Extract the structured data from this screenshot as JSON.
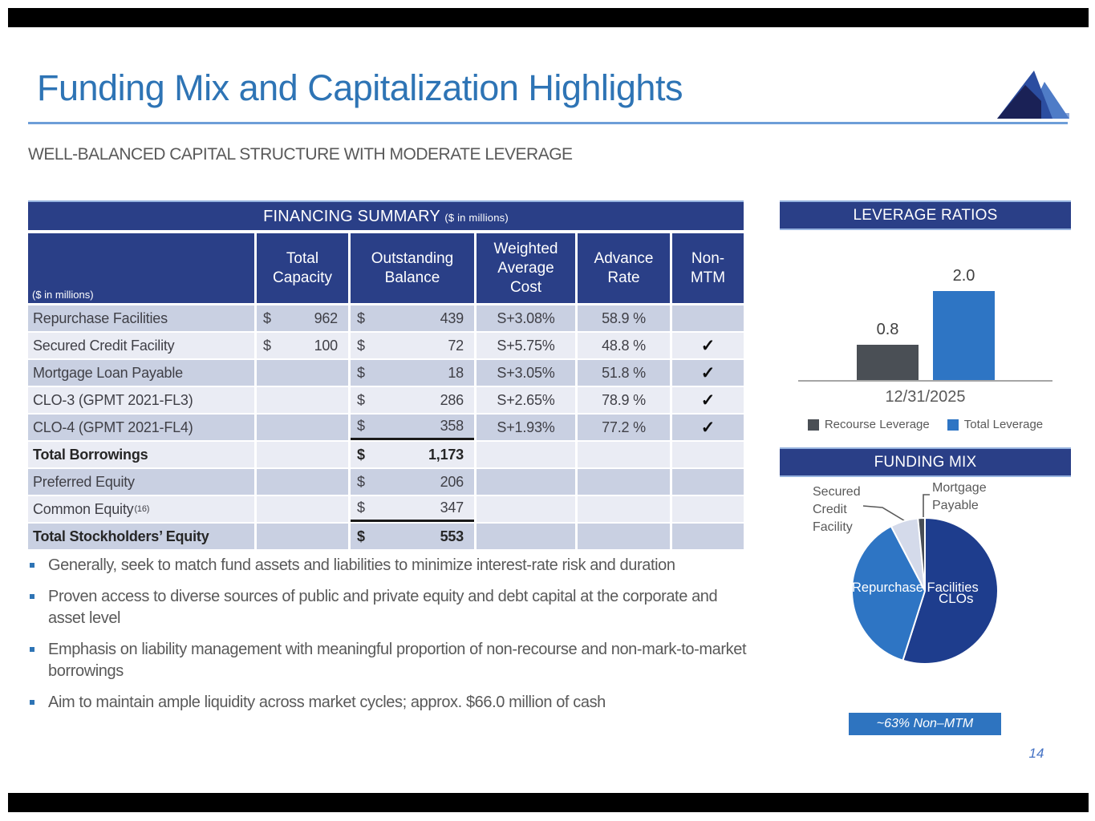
{
  "slide": {
    "title": "Funding Mix and Capitalization Highlights",
    "subtitle": "WELL-BALANCED CAPITAL STRUCTURE WITH MODERATE LEVERAGE",
    "page_number": "14"
  },
  "colors": {
    "title_blue": "#2E74B5",
    "navy_header": "#2A3F87",
    "accent_blue": "#2E75C4",
    "dark_gray_bar": "#4A4F55",
    "row_dark": "#C9D0E2",
    "row_light": "#EAECF4",
    "body_gray": "#595959"
  },
  "financing_table": {
    "title": "FINANCING SUMMARY",
    "unit": "($ in millions)",
    "row_unit": "($ in millions)",
    "dollar": "$",
    "check_glyph": "✓",
    "columns": [
      "",
      "Total Capacity",
      "Outstanding Balance",
      "Weighted Average Cost",
      "Advance Rate",
      "Non-MTM"
    ],
    "rows": [
      {
        "name": "Repurchase Facilities",
        "capacity": "962",
        "balance": "439",
        "cost": "S+3.08%",
        "advance": "58.9 %",
        "non_mtm": false
      },
      {
        "name": "Secured Credit Facility",
        "capacity": "100",
        "balance": "72",
        "cost": "S+5.75%",
        "advance": "48.8 %",
        "non_mtm": true
      },
      {
        "name": "Mortgage Loan Payable",
        "capacity": "",
        "balance": "18",
        "cost": "S+3.05%",
        "advance": "51.8 %",
        "non_mtm": true
      },
      {
        "name": "CLO-3 (GPMT 2021-FL3)",
        "capacity": "",
        "balance": "286",
        "cost": "S+2.65%",
        "advance": "78.9 %",
        "non_mtm": true
      },
      {
        "name": "CLO-4 (GPMT 2021-FL4)",
        "capacity": "",
        "balance": "358",
        "cost": "S+1.93%",
        "advance": "77.2 %",
        "non_mtm": true,
        "sum_line": true
      },
      {
        "name": "Total Borrowings",
        "capacity": "",
        "balance": "1,173",
        "cost": "",
        "advance": "",
        "non_mtm": false,
        "bold": true
      },
      {
        "name": "Preferred Equity",
        "capacity": "",
        "balance": "206",
        "cost": "",
        "advance": "",
        "non_mtm": false
      },
      {
        "name": "Common Equity",
        "name_sup": "(16)",
        "capacity": "",
        "balance": "347",
        "cost": "",
        "advance": "",
        "non_mtm": false,
        "sum_line": true
      },
      {
        "name": "Total Stockholders’ Equity",
        "capacity": "",
        "balance": "553",
        "cost": "",
        "advance": "",
        "non_mtm": false,
        "bold": true
      }
    ]
  },
  "leverage": {
    "title": "LEVERAGE RATIOS",
    "date_label": "12/31/2025",
    "bars": [
      {
        "name": "Recourse Leverage",
        "value": 0.8,
        "color": "#4A4F55"
      },
      {
        "name": "Total Leverage",
        "value": 2.0,
        "color": "#2E75C4"
      }
    ]
  },
  "funding_mix": {
    "title": "FUNDING MIX",
    "slices": [
      {
        "id": "clos",
        "label": "CLOs",
        "value": 644,
        "color": "#1E3D8D"
      },
      {
        "id": "repurchase-facilities",
        "label": "Repurchase Facilities",
        "value": 439,
        "color": "#2E75C4"
      },
      {
        "id": "secured-credit-facility",
        "label": "Secured Credit Facility",
        "value": 72,
        "color": "#D4DAEA"
      },
      {
        "id": "mortgage-payable",
        "label": "Mortgage Payable",
        "value": 18,
        "color": "#474D55"
      }
    ],
    "callout_secured": "Secured\nCredit\nFacility",
    "callout_mortgage": "Mortgage\nPayable",
    "label_repurchase": "Repurchase\nFacilities",
    "label_clos": "CLOs",
    "badge": "~63% Non–MTM"
  },
  "bullets": [
    "Generally, seek to match fund assets and liabilities to minimize interest-rate risk and duration",
    "Proven access to diverse sources of public and private equity and debt capital at the corporate and asset level",
    "Emphasis on liability management with meaningful proportion of non-recourse and non-mark-to-market borrowings",
    "Aim to maintain ample liquidity across market cycles; approx. $66.0 million of cash"
  ],
  "chart_data": [
    {
      "type": "bar",
      "title": "LEVERAGE RATIOS",
      "categories": [
        "12/31/2025"
      ],
      "series": [
        {
          "name": "Recourse Leverage",
          "values": [
            0.8
          ]
        },
        {
          "name": "Total Leverage",
          "values": [
            2.0
          ]
        }
      ],
      "ylim": [
        0,
        2.2
      ],
      "grid": false,
      "legend_position": "bottom",
      "data_labels": true
    },
    {
      "type": "pie",
      "title": "FUNDING MIX",
      "labels": [
        "CLOs",
        "Repurchase Facilities",
        "Secured Credit Facility",
        "Mortgage Payable"
      ],
      "values": [
        644,
        439,
        72,
        18
      ],
      "units": "$ in millions",
      "annotation": "~63% Non–MTM"
    }
  ]
}
